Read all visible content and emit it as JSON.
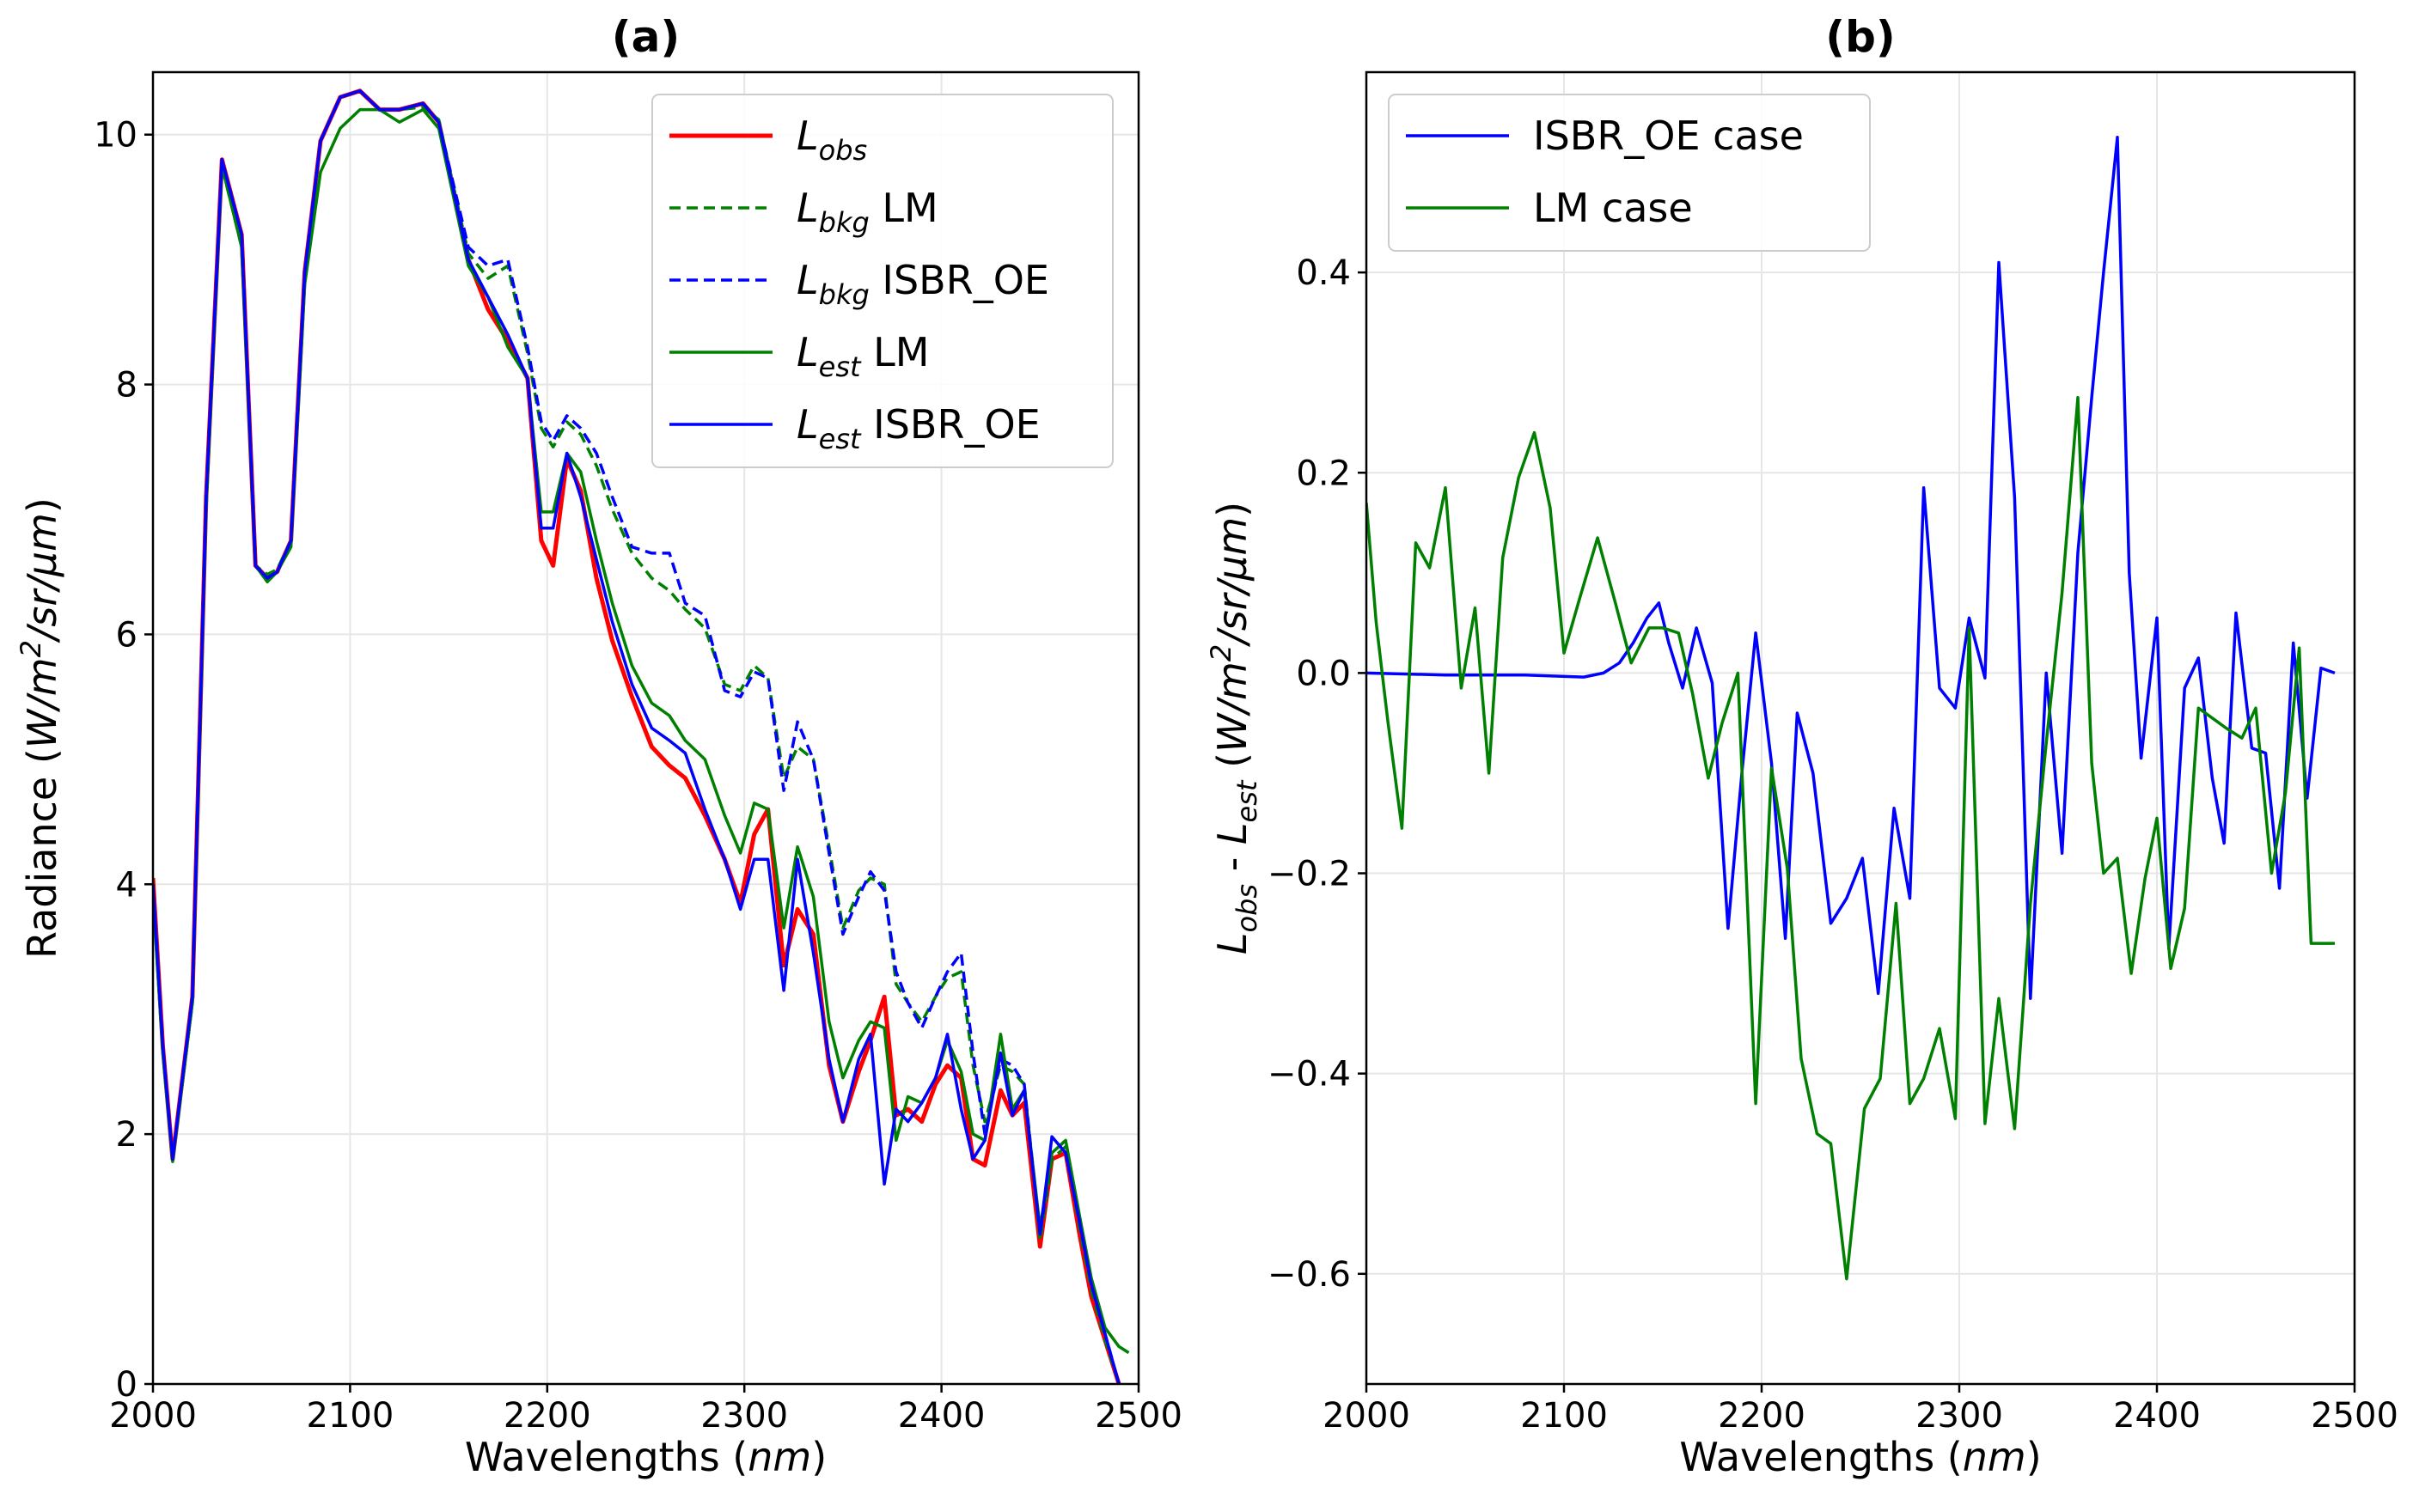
{
  "chart_data": [
    {
      "type": "line",
      "title": "(a)",
      "xlabel": "Wavelengths (nm)",
      "ylabel": "Radiance (W/m2/sr/µm)",
      "xlim": [
        2000,
        2500
      ],
      "ylim": [
        0,
        10.5
      ],
      "xticks": [
        2000,
        2100,
        2200,
        2300,
        2400,
        2500
      ],
      "yticks": [
        0,
        2,
        4,
        6,
        8,
        10
      ],
      "grid": true,
      "legend_position": "top-right",
      "series": [
        {
          "name": "L_obs",
          "legend_main": "L",
          "legend_sub": "obs",
          "legend_suffix": "",
          "color": "#ff0000",
          "dash": false,
          "x": [
            2000,
            2005,
            2010,
            2020,
            2027,
            2035,
            2045,
            2052,
            2058,
            2063,
            2070,
            2077,
            2085,
            2095,
            2105,
            2115,
            2125,
            2137,
            2145,
            2160,
            2170,
            2180,
            2190,
            2197,
            2203,
            2210,
            2217,
            2225,
            2233,
            2243,
            2253,
            2262,
            2270,
            2280,
            2290,
            2298,
            2305,
            2312,
            2320,
            2327,
            2335,
            2343,
            2350,
            2358,
            2364,
            2371,
            2377,
            2383,
            2390,
            2397,
            2403,
            2410,
            2416,
            2422,
            2430,
            2436,
            2442,
            2450,
            2456,
            2463,
            2470,
            2476,
            2483,
            2490
          ],
          "y": [
            4.05,
            2.7,
            1.8,
            3.1,
            7.1,
            9.8,
            9.2,
            6.55,
            6.45,
            6.5,
            6.75,
            8.9,
            9.95,
            10.3,
            10.35,
            10.2,
            10.2,
            10.25,
            10.1,
            9.0,
            8.6,
            8.35,
            8.05,
            6.75,
            6.55,
            7.4,
            7.15,
            6.45,
            5.95,
            5.5,
            5.1,
            4.95,
            4.85,
            4.55,
            4.2,
            3.85,
            4.4,
            4.6,
            3.35,
            3.8,
            3.6,
            2.55,
            2.1,
            2.5,
            2.75,
            3.1,
            2.15,
            2.2,
            2.1,
            2.4,
            2.55,
            2.45,
            1.8,
            1.75,
            2.35,
            2.15,
            2.25,
            1.1,
            1.8,
            1.85,
            1.2,
            0.7,
            0.35,
            0.0
          ]
        },
        {
          "name": "L_bkg LM",
          "legend_main": "L",
          "legend_sub": "bkg",
          "legend_suffix": " LM",
          "color": "#008000",
          "dash": true,
          "x": [
            2000,
            2005,
            2010,
            2020,
            2027,
            2035,
            2045,
            2052,
            2058,
            2063,
            2070,
            2077,
            2085,
            2095,
            2105,
            2115,
            2125,
            2137,
            2145,
            2160,
            2170,
            2180,
            2190,
            2197,
            2203,
            2210,
            2217,
            2225,
            2233,
            2243,
            2253,
            2262,
            2270,
            2280,
            2290,
            2298,
            2305,
            2312,
            2320,
            2327,
            2335,
            2343,
            2350,
            2358,
            2364,
            2371,
            2377,
            2383,
            2390,
            2397,
            2403,
            2410,
            2416,
            2422,
            2430,
            2436,
            2442,
            2450,
            2456,
            2463,
            2470,
            2476,
            2483,
            2490
          ],
          "y": [
            3.95,
            2.65,
            1.78,
            3.05,
            7.0,
            9.75,
            9.1,
            6.55,
            6.48,
            6.52,
            6.75,
            8.85,
            9.95,
            10.3,
            10.35,
            10.2,
            10.2,
            10.22,
            10.12,
            9.05,
            8.85,
            8.95,
            8.25,
            7.65,
            7.5,
            7.7,
            7.6,
            7.35,
            7.0,
            6.65,
            6.45,
            6.35,
            6.2,
            6.05,
            5.6,
            5.55,
            5.75,
            5.65,
            4.85,
            5.1,
            5.0,
            4.3,
            3.65,
            3.95,
            4.05,
            4.0,
            3.2,
            3.05,
            2.9,
            3.1,
            3.25,
            3.3,
            2.55,
            2.1,
            2.55,
            2.5,
            2.4,
            1.15,
            1.8,
            1.9,
            1.25,
            0.75,
            0.35,
            0.0
          ]
        },
        {
          "name": "L_bkg ISBR_OE",
          "legend_main": "L",
          "legend_sub": "bkg",
          "legend_suffix": " ISBR_OE",
          "color": "#0000ff",
          "dash": true,
          "x": [
            2000,
            2005,
            2010,
            2020,
            2027,
            2035,
            2045,
            2052,
            2058,
            2063,
            2070,
            2077,
            2085,
            2095,
            2105,
            2115,
            2125,
            2137,
            2145,
            2160,
            2170,
            2180,
            2190,
            2197,
            2203,
            2210,
            2217,
            2225,
            2233,
            2243,
            2253,
            2262,
            2270,
            2280,
            2290,
            2298,
            2305,
            2312,
            2320,
            2327,
            2335,
            2343,
            2350,
            2358,
            2364,
            2371,
            2377,
            2383,
            2390,
            2397,
            2403,
            2410,
            2416,
            2422,
            2430,
            2436,
            2442,
            2450,
            2456,
            2463,
            2470,
            2476,
            2483,
            2490
          ],
          "y": [
            4.0,
            2.7,
            1.8,
            3.1,
            7.1,
            9.8,
            9.2,
            6.55,
            6.45,
            6.5,
            6.75,
            8.9,
            9.95,
            10.3,
            10.35,
            10.2,
            10.2,
            10.25,
            10.1,
            9.1,
            8.95,
            9.0,
            8.3,
            7.7,
            7.55,
            7.75,
            7.65,
            7.45,
            7.1,
            6.7,
            6.65,
            6.65,
            6.25,
            6.15,
            5.55,
            5.5,
            5.7,
            5.65,
            4.75,
            5.3,
            5.0,
            4.25,
            3.6,
            3.9,
            4.1,
            3.95,
            3.3,
            3.05,
            2.85,
            3.1,
            3.3,
            3.45,
            2.65,
            2.0,
            2.6,
            2.55,
            2.4,
            1.2,
            1.85,
            1.95,
            1.3,
            0.8,
            0.4,
            0.0
          ]
        },
        {
          "name": "L_est LM",
          "legend_main": "L",
          "legend_sub": "est",
          "legend_suffix": " LM",
          "color": "#008000",
          "dash": false,
          "x": [
            2000,
            2005,
            2010,
            2020,
            2027,
            2035,
            2045,
            2052,
            2058,
            2063,
            2070,
            2077,
            2085,
            2095,
            2105,
            2115,
            2125,
            2137,
            2145,
            2160,
            2170,
            2180,
            2190,
            2197,
            2203,
            2210,
            2217,
            2225,
            2233,
            2243,
            2253,
            2262,
            2270,
            2280,
            2290,
            2298,
            2305,
            2312,
            2320,
            2327,
            2335,
            2343,
            2350,
            2358,
            2364,
            2371,
            2377,
            2383,
            2390,
            2397,
            2403,
            2410,
            2416,
            2422,
            2430,
            2436,
            2442,
            2450,
            2456,
            2463,
            2470,
            2476,
            2483,
            2490,
            2495
          ],
          "y": [
            3.9,
            2.65,
            1.78,
            3.05,
            7.05,
            9.75,
            9.1,
            6.55,
            6.42,
            6.5,
            6.7,
            8.8,
            9.7,
            10.05,
            10.2,
            10.2,
            10.1,
            10.2,
            10.05,
            8.95,
            8.7,
            8.3,
            8.05,
            6.98,
            6.98,
            7.45,
            7.3,
            6.75,
            6.25,
            5.75,
            5.45,
            5.35,
            5.15,
            5.0,
            4.55,
            4.25,
            4.65,
            4.6,
            3.65,
            4.3,
            3.9,
            2.9,
            2.45,
            2.75,
            2.9,
            2.85,
            1.95,
            2.3,
            2.25,
            2.45,
            2.75,
            2.5,
            2.0,
            1.95,
            2.8,
            2.2,
            2.35,
            1.25,
            1.85,
            1.95,
            1.35,
            0.85,
            0.45,
            0.3,
            0.25
          ]
        },
        {
          "name": "L_est ISBR_OE",
          "legend_main": "L",
          "legend_sub": "est",
          "legend_suffix": " ISBR_OE",
          "color": "#0000ff",
          "dash": false,
          "x": [
            2000,
            2005,
            2010,
            2020,
            2027,
            2035,
            2045,
            2052,
            2058,
            2063,
            2070,
            2077,
            2085,
            2095,
            2105,
            2115,
            2125,
            2137,
            2145,
            2160,
            2170,
            2180,
            2190,
            2197,
            2203,
            2210,
            2217,
            2225,
            2233,
            2243,
            2253,
            2262,
            2270,
            2280,
            2290,
            2298,
            2305,
            2312,
            2320,
            2327,
            2335,
            2343,
            2350,
            2358,
            2364,
            2371,
            2377,
            2383,
            2390,
            2397,
            2403,
            2410,
            2416,
            2422,
            2430,
            2436,
            2442,
            2450,
            2456,
            2463,
            2470,
            2476,
            2483,
            2490
          ],
          "y": [
            4.0,
            2.7,
            1.8,
            3.1,
            7.1,
            9.8,
            9.2,
            6.55,
            6.45,
            6.5,
            6.75,
            8.9,
            9.95,
            10.3,
            10.35,
            10.2,
            10.2,
            10.25,
            10.1,
            9.0,
            8.7,
            8.4,
            8.05,
            6.85,
            6.85,
            7.45,
            7.1,
            6.6,
            6.1,
            5.6,
            5.25,
            5.15,
            5.05,
            4.6,
            4.2,
            3.8,
            4.2,
            4.2,
            3.15,
            4.2,
            3.45,
            2.6,
            2.1,
            2.6,
            2.8,
            1.6,
            2.2,
            2.1,
            2.25,
            2.45,
            2.8,
            2.2,
            1.8,
            1.95,
            2.65,
            2.15,
            2.35,
            1.2,
            1.98,
            1.85,
            1.3,
            0.8,
            0.4,
            0.0
          ]
        }
      ]
    },
    {
      "type": "line",
      "title": "(b)",
      "xlabel": "Wavelengths (nm)",
      "ylabel": "L_obs - L_est (W/m2/sr/µm)",
      "xlim": [
        2000,
        2500
      ],
      "ylim": [
        -0.71,
        0.6
      ],
      "xticks": [
        2000,
        2100,
        2200,
        2300,
        2400,
        2500
      ],
      "yticks": [
        -0.6,
        -0.4,
        -0.2,
        0.0,
        0.2,
        0.4
      ],
      "ytick_labels": [
        "−0.6",
        "−0.4",
        "−0.2",
        "0.0",
        "0.2",
        "0.4"
      ],
      "grid": true,
      "legend_position": "top-left",
      "series": [
        {
          "name": "ISBR_OE case",
          "color": "#0000ff",
          "x": [
            2000,
            2040,
            2080,
            2110,
            2120,
            2128,
            2135,
            2142,
            2148,
            2153,
            2160,
            2167,
            2175,
            2183,
            2190,
            2197,
            2205,
            2212,
            2218,
            2226,
            2235,
            2243,
            2251,
            2259,
            2267,
            2275,
            2282,
            2290,
            2298,
            2305,
            2313,
            2320,
            2328,
            2336,
            2344,
            2352,
            2360,
            2367,
            2373,
            2380,
            2386,
            2392,
            2400,
            2406,
            2414,
            2421,
            2428,
            2434,
            2440,
            2448,
            2455,
            2462,
            2469,
            2476,
            2483,
            2490
          ],
          "y": [
            0.0,
            -0.002,
            -0.002,
            -0.004,
            0.0,
            0.01,
            0.03,
            0.055,
            0.07,
            0.03,
            -0.015,
            0.045,
            -0.01,
            -0.255,
            -0.1,
            0.04,
            -0.09,
            -0.265,
            -0.04,
            -0.1,
            -0.25,
            -0.225,
            -0.185,
            -0.32,
            -0.135,
            -0.225,
            0.185,
            -0.015,
            -0.035,
            0.055,
            -0.005,
            0.41,
            0.175,
            -0.325,
            0.0,
            -0.18,
            0.12,
            0.275,
            0.4,
            0.535,
            0.1,
            -0.085,
            0.055,
            -0.275,
            -0.015,
            0.015,
            -0.105,
            -0.17,
            0.06,
            -0.075,
            -0.08,
            -0.215,
            0.03,
            -0.125,
            0.005,
            0.0
          ]
        },
        {
          "name": "LM case",
          "color": "#008000",
          "x": [
            2000,
            2005,
            2011,
            2018,
            2025,
            2032,
            2040,
            2048,
            2055,
            2062,
            2069,
            2077,
            2085,
            2093,
            2100,
            2108,
            2117,
            2126,
            2134,
            2143,
            2150,
            2158,
            2165,
            2173,
            2180,
            2188,
            2197,
            2205,
            2213,
            2220,
            2228,
            2235,
            2243,
            2252,
            2260,
            2268,
            2275,
            2282,
            2290,
            2298,
            2305,
            2313,
            2320,
            2328,
            2336,
            2344,
            2352,
            2360,
            2367,
            2373,
            2380,
            2387,
            2394,
            2400,
            2407,
            2414,
            2421,
            2428,
            2435,
            2443,
            2450,
            2458,
            2465,
            2472,
            2478,
            2483,
            2490
          ],
          "y": [
            0.17,
            0.05,
            -0.05,
            -0.155,
            0.13,
            0.105,
            0.185,
            -0.015,
            0.065,
            -0.1,
            0.115,
            0.195,
            0.24,
            0.165,
            0.02,
            0.075,
            0.135,
            0.07,
            0.01,
            0.045,
            0.045,
            0.04,
            -0.02,
            -0.105,
            -0.05,
            0.0,
            -0.43,
            -0.095,
            -0.195,
            -0.385,
            -0.46,
            -0.47,
            -0.605,
            -0.435,
            -0.405,
            -0.23,
            -0.43,
            -0.405,
            -0.355,
            -0.445,
            0.045,
            -0.45,
            -0.325,
            -0.455,
            -0.23,
            -0.07,
            0.08,
            0.275,
            -0.09,
            -0.2,
            -0.185,
            -0.3,
            -0.205,
            -0.145,
            -0.295,
            -0.235,
            -0.035,
            -0.045,
            -0.055,
            -0.065,
            -0.035,
            -0.2,
            -0.12,
            0.025,
            -0.27,
            -0.27,
            -0.27
          ]
        }
      ]
    }
  ]
}
